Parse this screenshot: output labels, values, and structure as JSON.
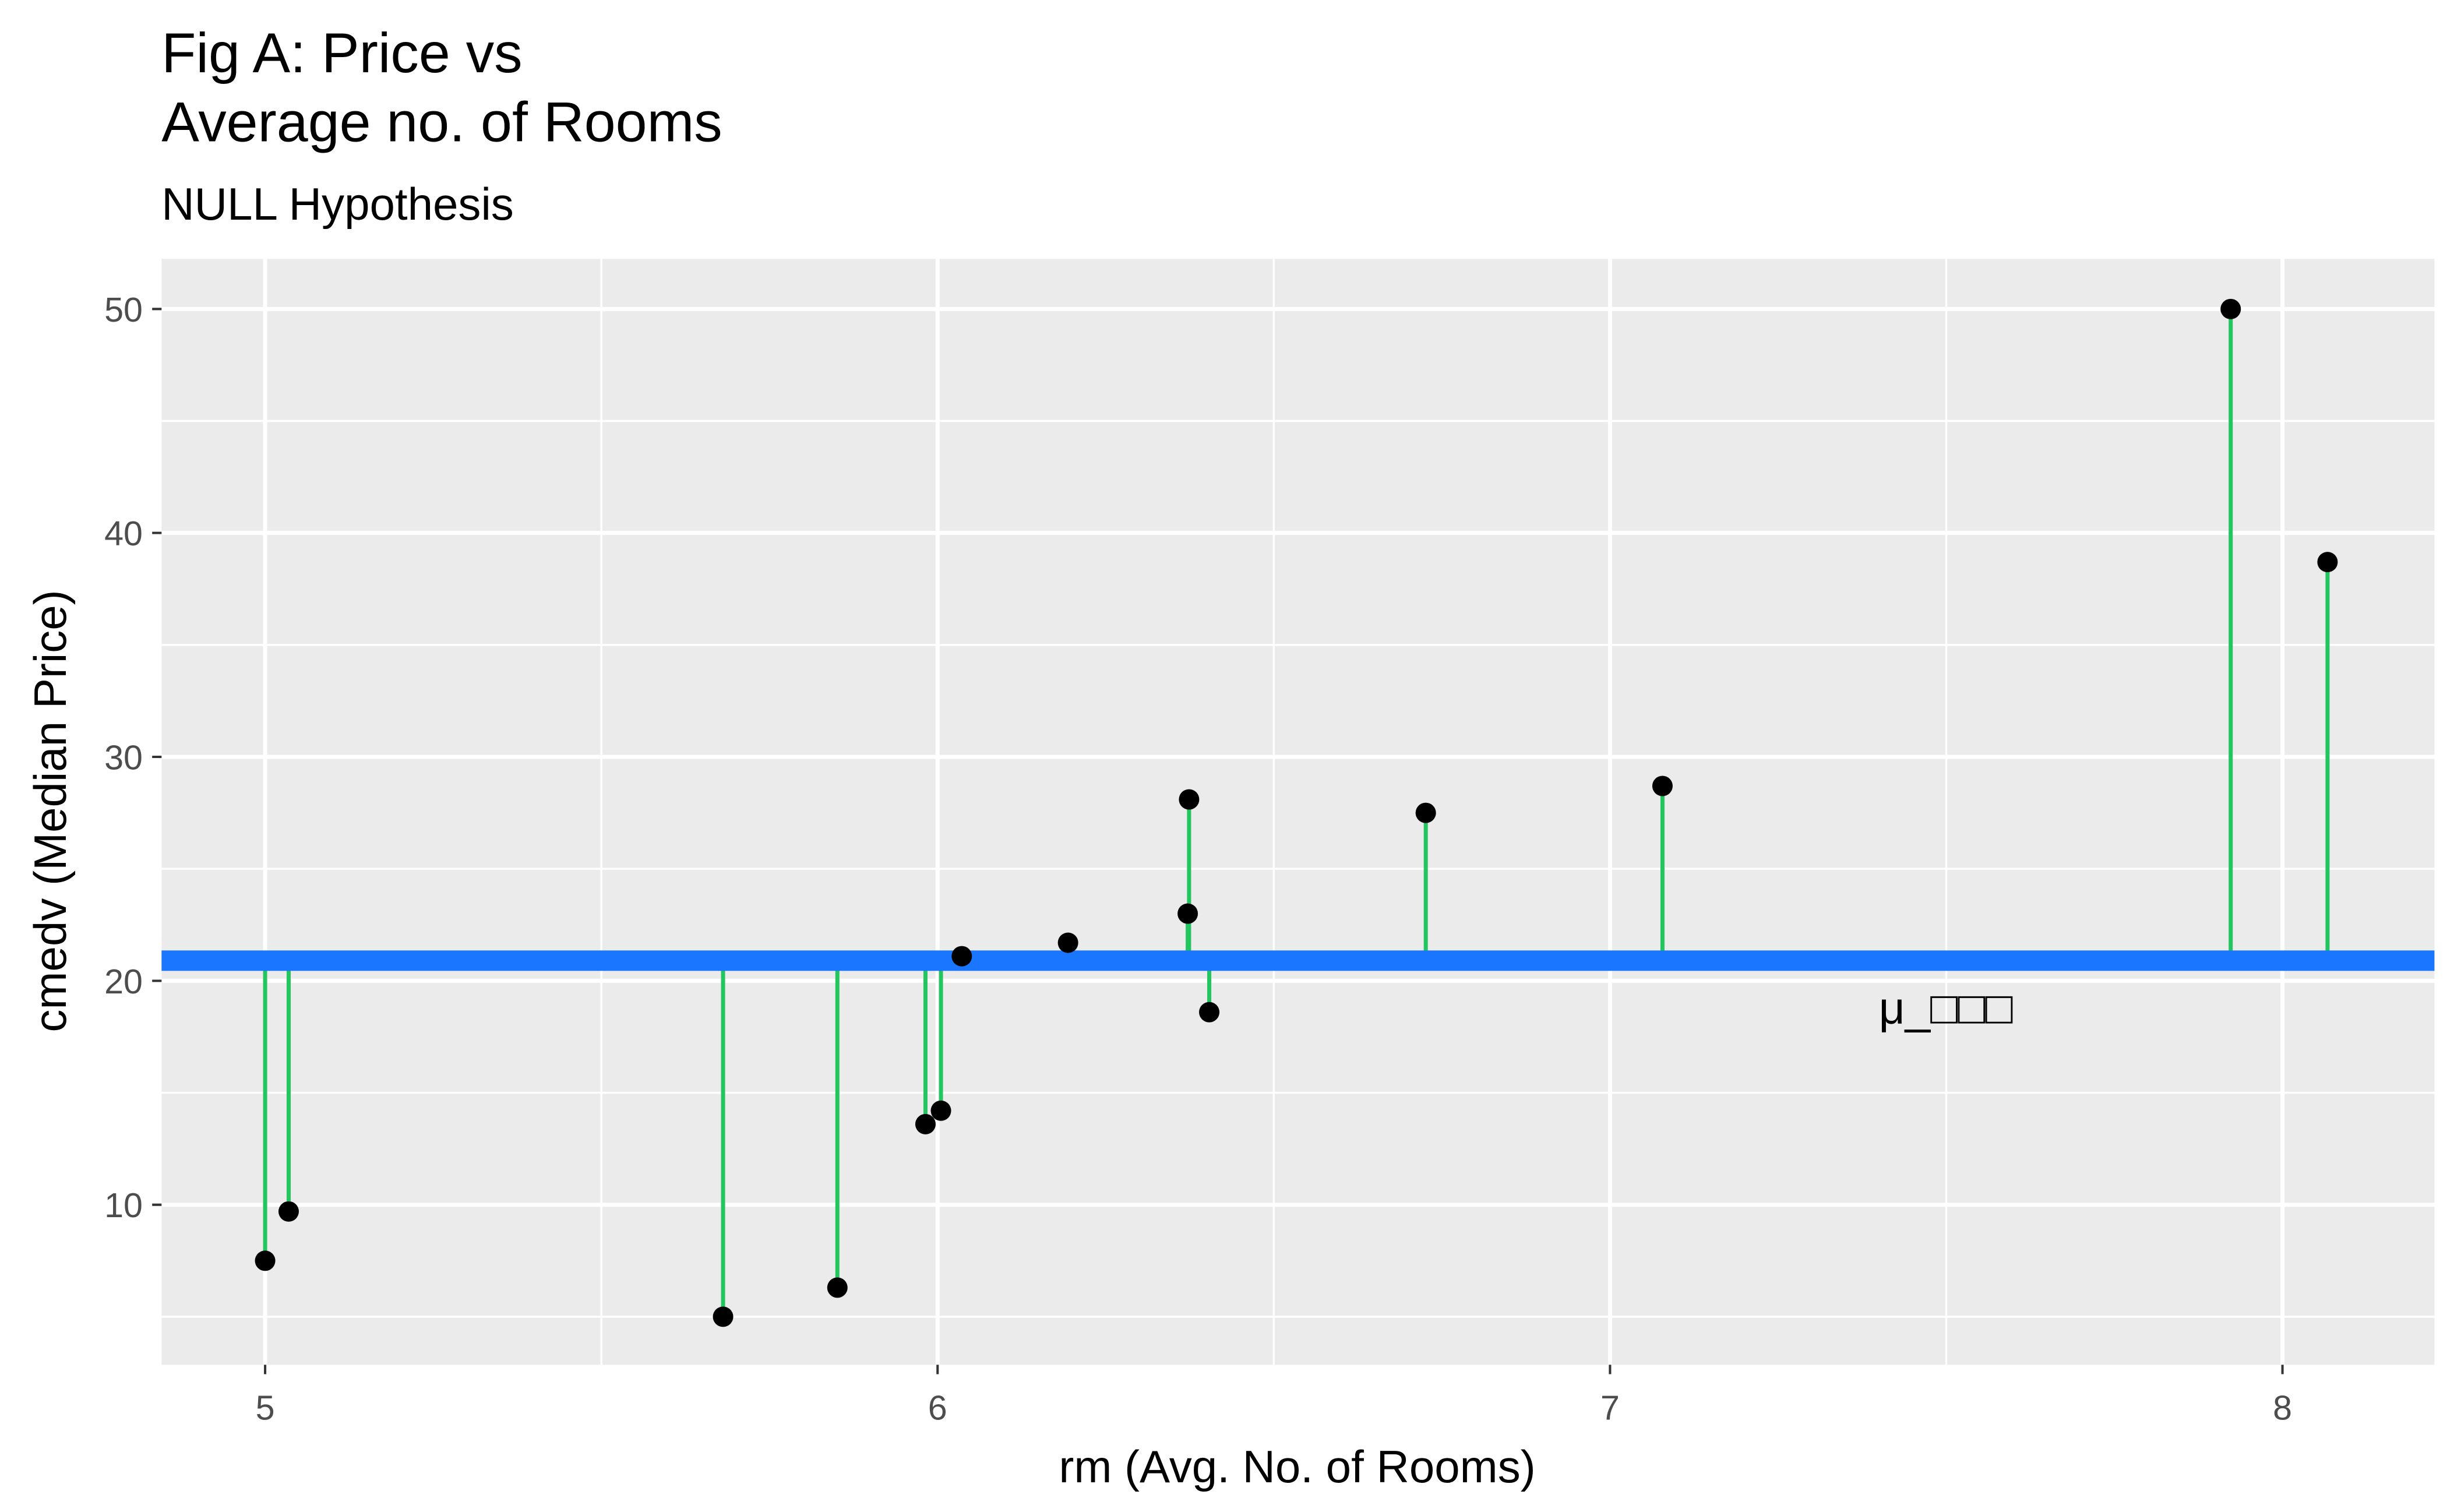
{
  "chart_data": {
    "type": "scatter",
    "title": "Fig A: Price vs\nAverage no. of Rooms",
    "subtitle": "NULL Hypothesis",
    "x_label": "rm (Avg. No. of Rooms)",
    "y_label": "cmedv (Median Price)",
    "annotation": "μ_□□□",
    "x": [
      5.0,
      5.035,
      5.681,
      5.851,
      5.982,
      6.005,
      6.036,
      6.194,
      6.372,
      6.374,
      6.404,
      6.726,
      7.078,
      7.923,
      8.067
    ],
    "values": [
      7.5,
      9.7,
      5.0,
      6.3,
      13.6,
      14.2,
      21.1,
      21.7,
      23.0,
      28.1,
      18.6,
      27.5,
      28.7,
      50.0,
      38.7
    ],
    "mean": 20.9,
    "color": "#000000",
    "segment_color": "#22c55e",
    "mean_color": "#1a75ff",
    "xlim": [
      4.846,
      8.226
    ],
    "ylim": [
      2.855,
      52.24
    ],
    "xticks": [
      5,
      6,
      7,
      8
    ],
    "yticks": [
      10,
      20,
      30,
      40,
      50
    ],
    "grid": true
  }
}
